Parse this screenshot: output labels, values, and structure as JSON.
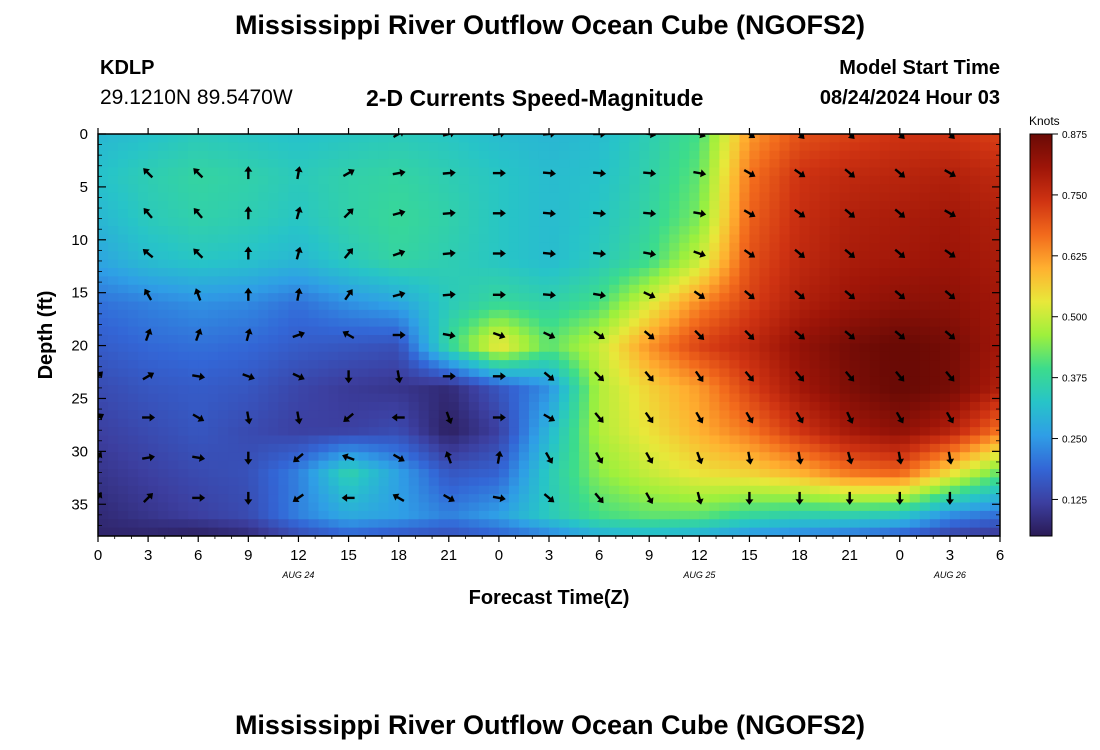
{
  "header": {
    "title": "Mississippi River Outflow Ocean Cube (NGOFS2)",
    "station_id": "KDLP",
    "station_coords": "29.1210N  89.5470W",
    "subtitle": "2-D Currents Speed-Magnitude",
    "model_start_label": "Model Start Time",
    "model_start_value": "08/24/2024 Hour 03"
  },
  "footer": {
    "title": "Mississippi River Outflow Ocean Cube (NGOFS2)"
  },
  "chart_data": {
    "type": "heatmap",
    "xlabel": "Forecast Time(Z)",
    "ylabel": "Depth (ft)",
    "x_hours": [
      0,
      54
    ],
    "y_depth_ft": [
      0,
      38
    ],
    "x_tick_labels": [
      "0",
      "3",
      "6",
      "9",
      "12",
      "15",
      "18",
      "21",
      "0",
      "3",
      "6",
      "9",
      "12",
      "15",
      "18",
      "21",
      "0",
      "3",
      "6"
    ],
    "y_ticks": [
      0,
      5,
      10,
      15,
      20,
      25,
      30,
      35
    ],
    "date_labels": [
      {
        "hour": 12,
        "label": "AUG 24"
      },
      {
        "hour": 36,
        "label": "AUG 25"
      },
      {
        "hour": 51,
        "label": "AUG 26"
      }
    ],
    "colorbar": {
      "label": "Knots",
      "range": [
        0.05,
        0.875
      ],
      "ticks": [
        0.875,
        0.75,
        0.625,
        0.5,
        0.375,
        0.25,
        0.125
      ],
      "tick_labels": [
        "0.875",
        "0.750",
        "0.625",
        "0.500",
        "0.375",
        "0.250",
        "0.125"
      ],
      "colors": [
        "#2a1a55",
        "#3c3fa0",
        "#3366d6",
        "#2f9ee6",
        "#27c4c8",
        "#3cdc8c",
        "#9ef03c",
        "#e8e83a",
        "#ffb030",
        "#f26a1c",
        "#cf3312",
        "#9e1508",
        "#6a0a05"
      ]
    },
    "grid_hours": [
      0,
      3,
      6,
      9,
      12,
      15,
      18,
      21,
      24,
      27,
      30,
      33,
      36,
      39,
      42,
      45,
      48,
      51,
      54
    ],
    "grid_depths_ft": [
      0,
      4,
      8,
      12,
      16,
      20,
      24,
      28,
      32,
      36,
      38
    ],
    "speed_knots": [
      [
        0.3,
        0.32,
        0.34,
        0.33,
        0.32,
        0.33,
        0.34,
        0.33,
        0.31,
        0.3,
        0.31,
        0.35,
        0.4,
        0.62,
        0.7,
        0.72,
        0.74,
        0.74,
        0.72
      ],
      [
        0.32,
        0.35,
        0.37,
        0.36,
        0.34,
        0.36,
        0.37,
        0.35,
        0.33,
        0.31,
        0.32,
        0.36,
        0.42,
        0.66,
        0.74,
        0.76,
        0.77,
        0.78,
        0.76
      ],
      [
        0.3,
        0.34,
        0.36,
        0.35,
        0.33,
        0.36,
        0.38,
        0.36,
        0.33,
        0.31,
        0.33,
        0.37,
        0.44,
        0.68,
        0.75,
        0.78,
        0.79,
        0.8,
        0.78
      ],
      [
        0.27,
        0.31,
        0.33,
        0.32,
        0.3,
        0.34,
        0.37,
        0.35,
        0.33,
        0.31,
        0.34,
        0.39,
        0.5,
        0.7,
        0.76,
        0.79,
        0.8,
        0.81,
        0.79
      ],
      [
        0.2,
        0.22,
        0.24,
        0.23,
        0.2,
        0.24,
        0.27,
        0.34,
        0.38,
        0.36,
        0.4,
        0.52,
        0.64,
        0.72,
        0.78,
        0.81,
        0.83,
        0.83,
        0.8
      ],
      [
        0.17,
        0.19,
        0.2,
        0.19,
        0.17,
        0.16,
        0.15,
        0.38,
        0.55,
        0.42,
        0.5,
        0.63,
        0.72,
        0.76,
        0.82,
        0.86,
        0.88,
        0.86,
        0.8
      ],
      [
        0.14,
        0.16,
        0.17,
        0.16,
        0.13,
        0.11,
        0.1,
        0.08,
        0.16,
        0.24,
        0.48,
        0.56,
        0.62,
        0.72,
        0.8,
        0.85,
        0.88,
        0.86,
        0.78
      ],
      [
        0.12,
        0.14,
        0.16,
        0.14,
        0.12,
        0.12,
        0.14,
        0.06,
        0.12,
        0.3,
        0.48,
        0.54,
        0.6,
        0.66,
        0.74,
        0.8,
        0.83,
        0.78,
        0.66
      ],
      [
        0.1,
        0.12,
        0.14,
        0.15,
        0.22,
        0.36,
        0.26,
        0.16,
        0.18,
        0.34,
        0.45,
        0.5,
        0.54,
        0.56,
        0.6,
        0.66,
        0.68,
        0.55,
        0.42
      ],
      [
        0.08,
        0.1,
        0.12,
        0.14,
        0.22,
        0.28,
        0.26,
        0.22,
        0.26,
        0.34,
        0.4,
        0.42,
        0.42,
        0.38,
        0.36,
        0.36,
        0.34,
        0.24,
        0.2
      ],
      [
        0.07,
        0.07,
        0.06,
        0.08,
        0.14,
        0.18,
        0.16,
        0.15,
        0.18,
        0.22,
        0.28,
        0.3,
        0.28,
        0.24,
        0.22,
        0.2,
        0.17,
        0.12,
        0.1
      ]
    ],
    "arrows": {
      "hours": [
        0,
        3,
        6,
        9,
        12,
        15,
        18,
        21,
        24,
        27,
        30,
        33,
        36,
        39,
        42,
        45,
        48,
        51
      ],
      "depths_ft": [
        0,
        3.7,
        7.5,
        11.3,
        15.2,
        19.0,
        22.9,
        26.8,
        30.6,
        34.4
      ],
      "direction_deg": [
        [
          null,
          null,
          null,
          null,
          null,
          null,
          60,
          75,
          80,
          85,
          90,
          100,
          110,
          125,
          135,
          135,
          135,
          135
        ],
        [
          null,
          315,
          315,
          0,
          10,
          60,
          80,
          85,
          90,
          95,
          95,
          95,
          100,
          120,
          125,
          130,
          130,
          120
        ],
        [
          null,
          320,
          320,
          0,
          15,
          45,
          75,
          85,
          90,
          95,
          95,
          95,
          100,
          120,
          125,
          130,
          130,
          120
        ],
        [
          null,
          310,
          315,
          0,
          15,
          40,
          70,
          85,
          90,
          95,
          95,
          100,
          110,
          125,
          130,
          130,
          130,
          125
        ],
        [
          null,
          330,
          340,
          0,
          10,
          35,
          75,
          85,
          90,
          95,
          100,
          115,
          125,
          130,
          130,
          130,
          130,
          130
        ],
        [
          null,
          20,
          20,
          15,
          70,
          300,
          90,
          100,
          110,
          115,
          125,
          130,
          135,
          135,
          130,
          130,
          130,
          130
        ],
        [
          45,
          60,
          100,
          110,
          115,
          180,
          170,
          90,
          90,
          130,
          135,
          140,
          145,
          140,
          140,
          140,
          140,
          140
        ],
        [
          60,
          90,
          120,
          170,
          170,
          230,
          270,
          160,
          90,
          120,
          140,
          145,
          150,
          150,
          150,
          155,
          150,
          150
        ],
        [
          30,
          80,
          100,
          180,
          230,
          290,
          120,
          340,
          10,
          150,
          150,
          150,
          160,
          170,
          170,
          165,
          170,
          170
        ],
        [
          30,
          45,
          90,
          180,
          235,
          270,
          300,
          120,
          100,
          130,
          140,
          150,
          165,
          180,
          180,
          180,
          180,
          180
        ]
      ]
    }
  }
}
